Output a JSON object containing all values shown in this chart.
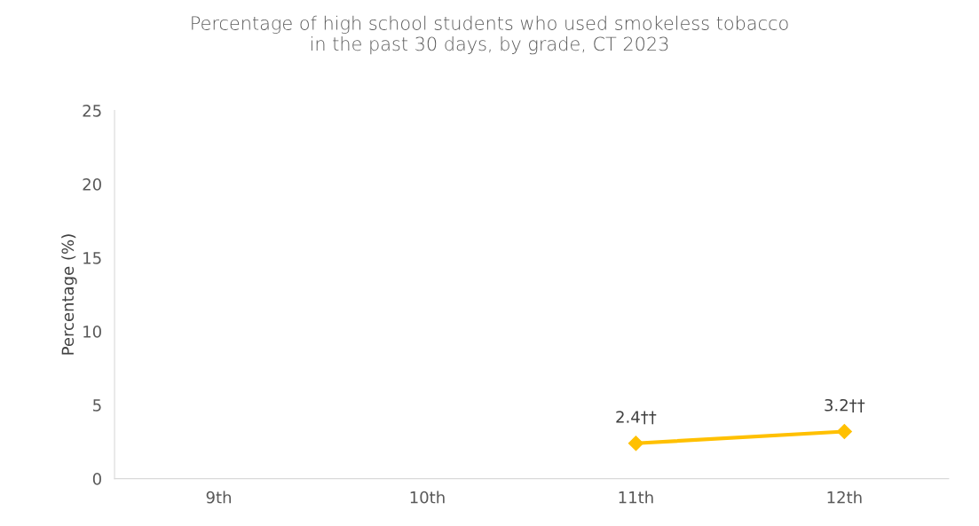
{
  "chart_data": {
    "type": "line",
    "title": "Percentage of high school students who used smokeless tobacco\nin the past 30 days, by grade, CT 2023",
    "ylabel": "Percentage (%)",
    "categories": [
      "9th",
      "10th",
      "11th",
      "12th"
    ],
    "series": [
      {
        "color": "#ffc000",
        "values": [
          null,
          null,
          2.4,
          3.2
        ],
        "value_labels": [
          null,
          null,
          "2.4††",
          "3.2††"
        ]
      }
    ],
    "ylim": [
      0,
      25
    ],
    "yticks": [
      0,
      5,
      10,
      15,
      20,
      25
    ],
    "grid": false,
    "legend": false,
    "marker": "diamond",
    "line_style": "solid"
  }
}
